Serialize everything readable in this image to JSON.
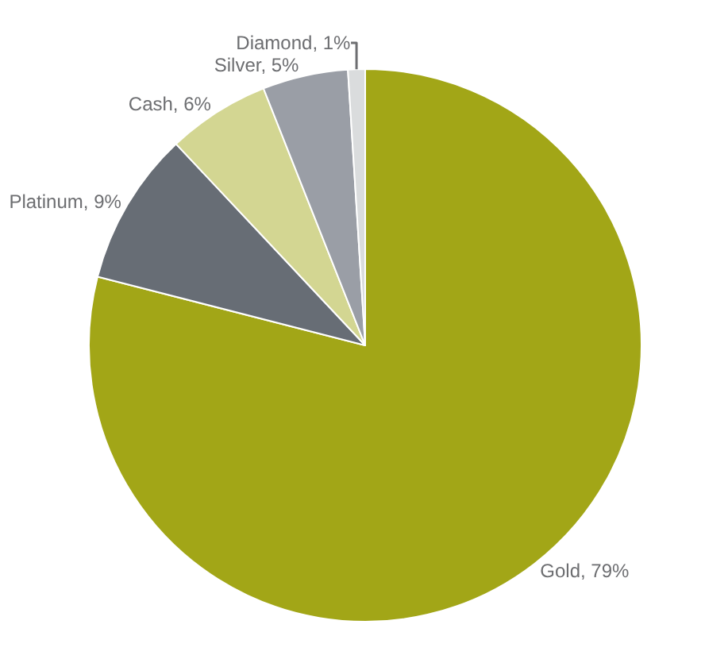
{
  "chart_data": {
    "type": "pie",
    "categories": [
      "Gold",
      "Platinum",
      "Cash",
      "Silver",
      "Diamond"
    ],
    "values": [
      79,
      9,
      6,
      5,
      1
    ],
    "colors": [
      "#a2a617",
      "#676d75",
      "#d3d692",
      "#9a9ea6",
      "#dadcdd"
    ],
    "value_labels": [
      "79%",
      "9%",
      "6%",
      "5%",
      "1%"
    ],
    "legend": false
  }
}
